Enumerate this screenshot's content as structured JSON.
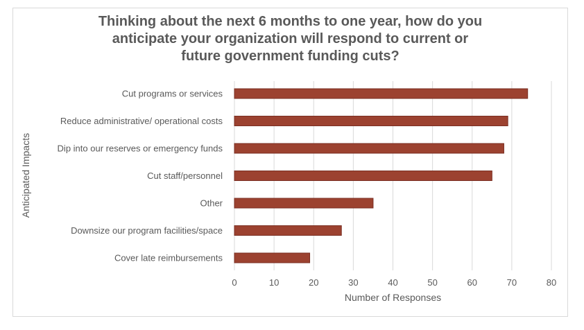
{
  "chart_data": {
    "type": "bar",
    "orientation": "horizontal",
    "title_lines": [
      "Thinking about the next 6 months to one year, how do you",
      "anticipate your organization will respond to current or",
      "future government funding cuts?"
    ],
    "categories": [
      "Cut programs or services",
      "Reduce administrative/ operational costs",
      "Dip into our reserves or emergency funds",
      "Cut staff/personnel",
      "Other",
      "Downsize our program facilities/space",
      "Cover late reimbursements"
    ],
    "values": [
      74,
      69,
      68,
      65,
      35,
      27,
      19
    ],
    "xlabel": "Number of Responses",
    "ylabel": "Anticipated Impacts",
    "xlim": [
      0,
      80
    ],
    "xticks": [
      0,
      10,
      20,
      30,
      40,
      50,
      60,
      70,
      80
    ],
    "grid": true,
    "bar_color": "#9c4230",
    "bar_edge_color": "#7a2e22",
    "grid_color": "#d9d9d9"
  }
}
